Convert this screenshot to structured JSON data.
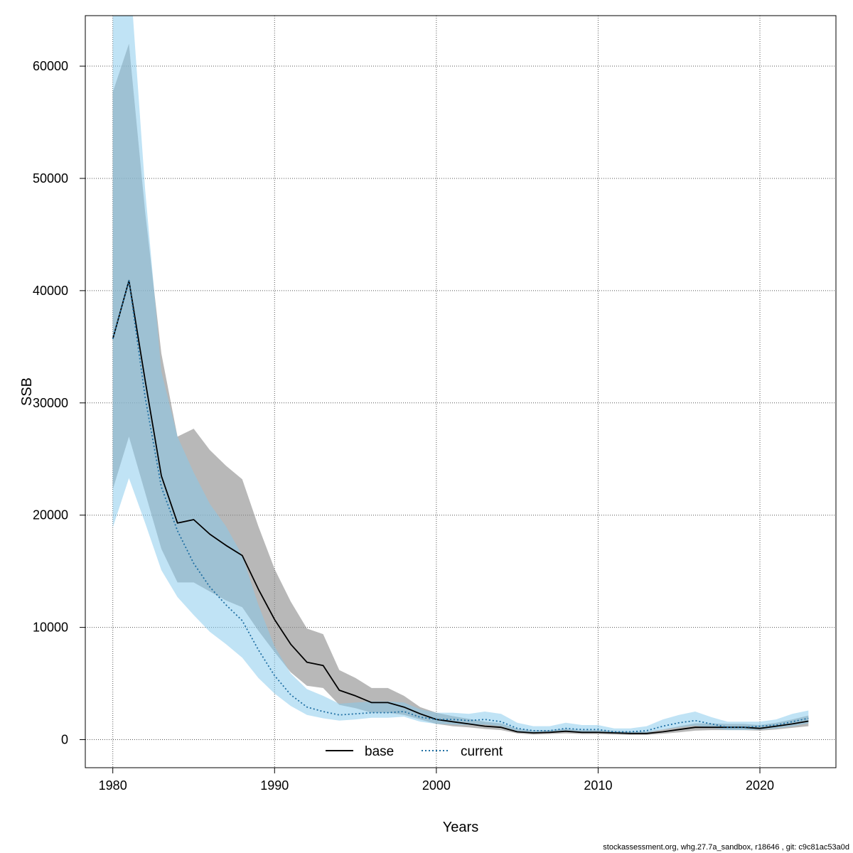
{
  "chart_data": {
    "type": "line",
    "title": "",
    "xlabel": "Years",
    "ylabel": "SSB",
    "xlim": [
      1978.3,
      2024.7
    ],
    "ylim": [
      -2500,
      64500
    ],
    "xticks": [
      1980,
      1990,
      2000,
      2010,
      2020
    ],
    "yticks": [
      0,
      10000,
      20000,
      30000,
      40000,
      50000,
      60000
    ],
    "xtick_labels": [
      "1980",
      "1990",
      "2000",
      "2010",
      "2020"
    ],
    "ytick_labels": [
      "0",
      "10000",
      "20000",
      "30000",
      "40000",
      "50000",
      "60000"
    ],
    "grid": true,
    "legend_position": "bottom-center",
    "x": [
      1980,
      1981,
      1982,
      1983,
      1984,
      1985,
      1986,
      1987,
      1988,
      1989,
      1990,
      1991,
      1992,
      1993,
      1994,
      1995,
      1996,
      1997,
      1998,
      1999,
      2000,
      2001,
      2002,
      2003,
      2004,
      2005,
      2006,
      2007,
      2008,
      2009,
      2010,
      2011,
      2012,
      2013,
      2014,
      2015,
      2016,
      2017,
      2018,
      2019,
      2020,
      2021,
      2022,
      2023
    ],
    "series": [
      {
        "name": "base",
        "color": "#000000",
        "dash": "solid",
        "band_color": "#8c8c8c",
        "values": [
          35700,
          40900,
          32000,
          23500,
          19300,
          19600,
          18300,
          17300,
          16400,
          13400,
          10700,
          8500,
          6900,
          6600,
          4400,
          3900,
          3300,
          3300,
          2900,
          2300,
          1800,
          1600,
          1400,
          1200,
          1100,
          700,
          600,
          650,
          750,
          650,
          650,
          600,
          550,
          550,
          700,
          900,
          1100,
          1100,
          1100,
          1100,
          1000,
          1200,
          1400,
          1650
        ],
        "lower": [
          22300,
          27000,
          22000,
          17000,
          14000,
          14000,
          13200,
          12400,
          11800,
          9700,
          7800,
          6000,
          4800,
          4600,
          3100,
          2800,
          2400,
          2400,
          2200,
          1800,
          1400,
          1200,
          1100,
          950,
          850,
          550,
          450,
          500,
          550,
          500,
          500,
          450,
          420,
          420,
          520,
          650,
          800,
          850,
          850,
          850,
          800,
          900,
          1050,
          1200
        ],
        "upper": [
          57700,
          62000,
          47000,
          34400,
          27000,
          27700,
          25800,
          24400,
          23200,
          19000,
          15200,
          12300,
          9900,
          9400,
          6200,
          5500,
          4600,
          4600,
          3900,
          2900,
          2400,
          2100,
          1850,
          1600,
          1450,
          950,
          800,
          850,
          950,
          850,
          850,
          780,
          720,
          720,
          900,
          1200,
          1450,
          1450,
          1400,
          1400,
          1300,
          1500,
          1800,
          2150
        ]
      },
      {
        "name": "current",
        "color": "#1f6fa3",
        "dash": "dotted",
        "band_color": "#86c9ec",
        "values": [
          35700,
          40900,
          30500,
          22500,
          18600,
          15700,
          13600,
          12000,
          10600,
          8000,
          5700,
          4000,
          2900,
          2500,
          2200,
          2300,
          2400,
          2400,
          2500,
          2000,
          1800,
          1800,
          1700,
          1800,
          1600,
          1000,
          800,
          800,
          1000,
          900,
          900,
          700,
          700,
          800,
          1200,
          1500,
          1700,
          1400,
          1100,
          1100,
          1200,
          1300,
          1600,
          1900
        ],
        "lower": [
          18900,
          23300,
          19300,
          15100,
          12700,
          11100,
          9600,
          8500,
          7300,
          5500,
          4100,
          3000,
          2200,
          1900,
          1700,
          1800,
          1950,
          1950,
          2050,
          1600,
          1400,
          1350,
          1300,
          1350,
          1200,
          750,
          600,
          600,
          750,
          700,
          680,
          540,
          540,
          600,
          900,
          1100,
          1250,
          1050,
          850,
          850,
          900,
          1000,
          1200,
          1450
        ],
        "upper": [
          69500,
          69500,
          49000,
          32800,
          27000,
          23800,
          21000,
          19000,
          16400,
          12000,
          8300,
          5900,
          4500,
          3900,
          3200,
          3300,
          3400,
          3400,
          3300,
          2700,
          2400,
          2400,
          2300,
          2500,
          2300,
          1500,
          1200,
          1200,
          1500,
          1300,
          1300,
          1000,
          1000,
          1200,
          1800,
          2200,
          2500,
          2000,
          1600,
          1600,
          1600,
          1800,
          2300,
          2600
        ]
      }
    ],
    "footer": "stockassessment.org, whg.27.7a_sandbox, r18646 , git: c9c81ac53a0d"
  }
}
